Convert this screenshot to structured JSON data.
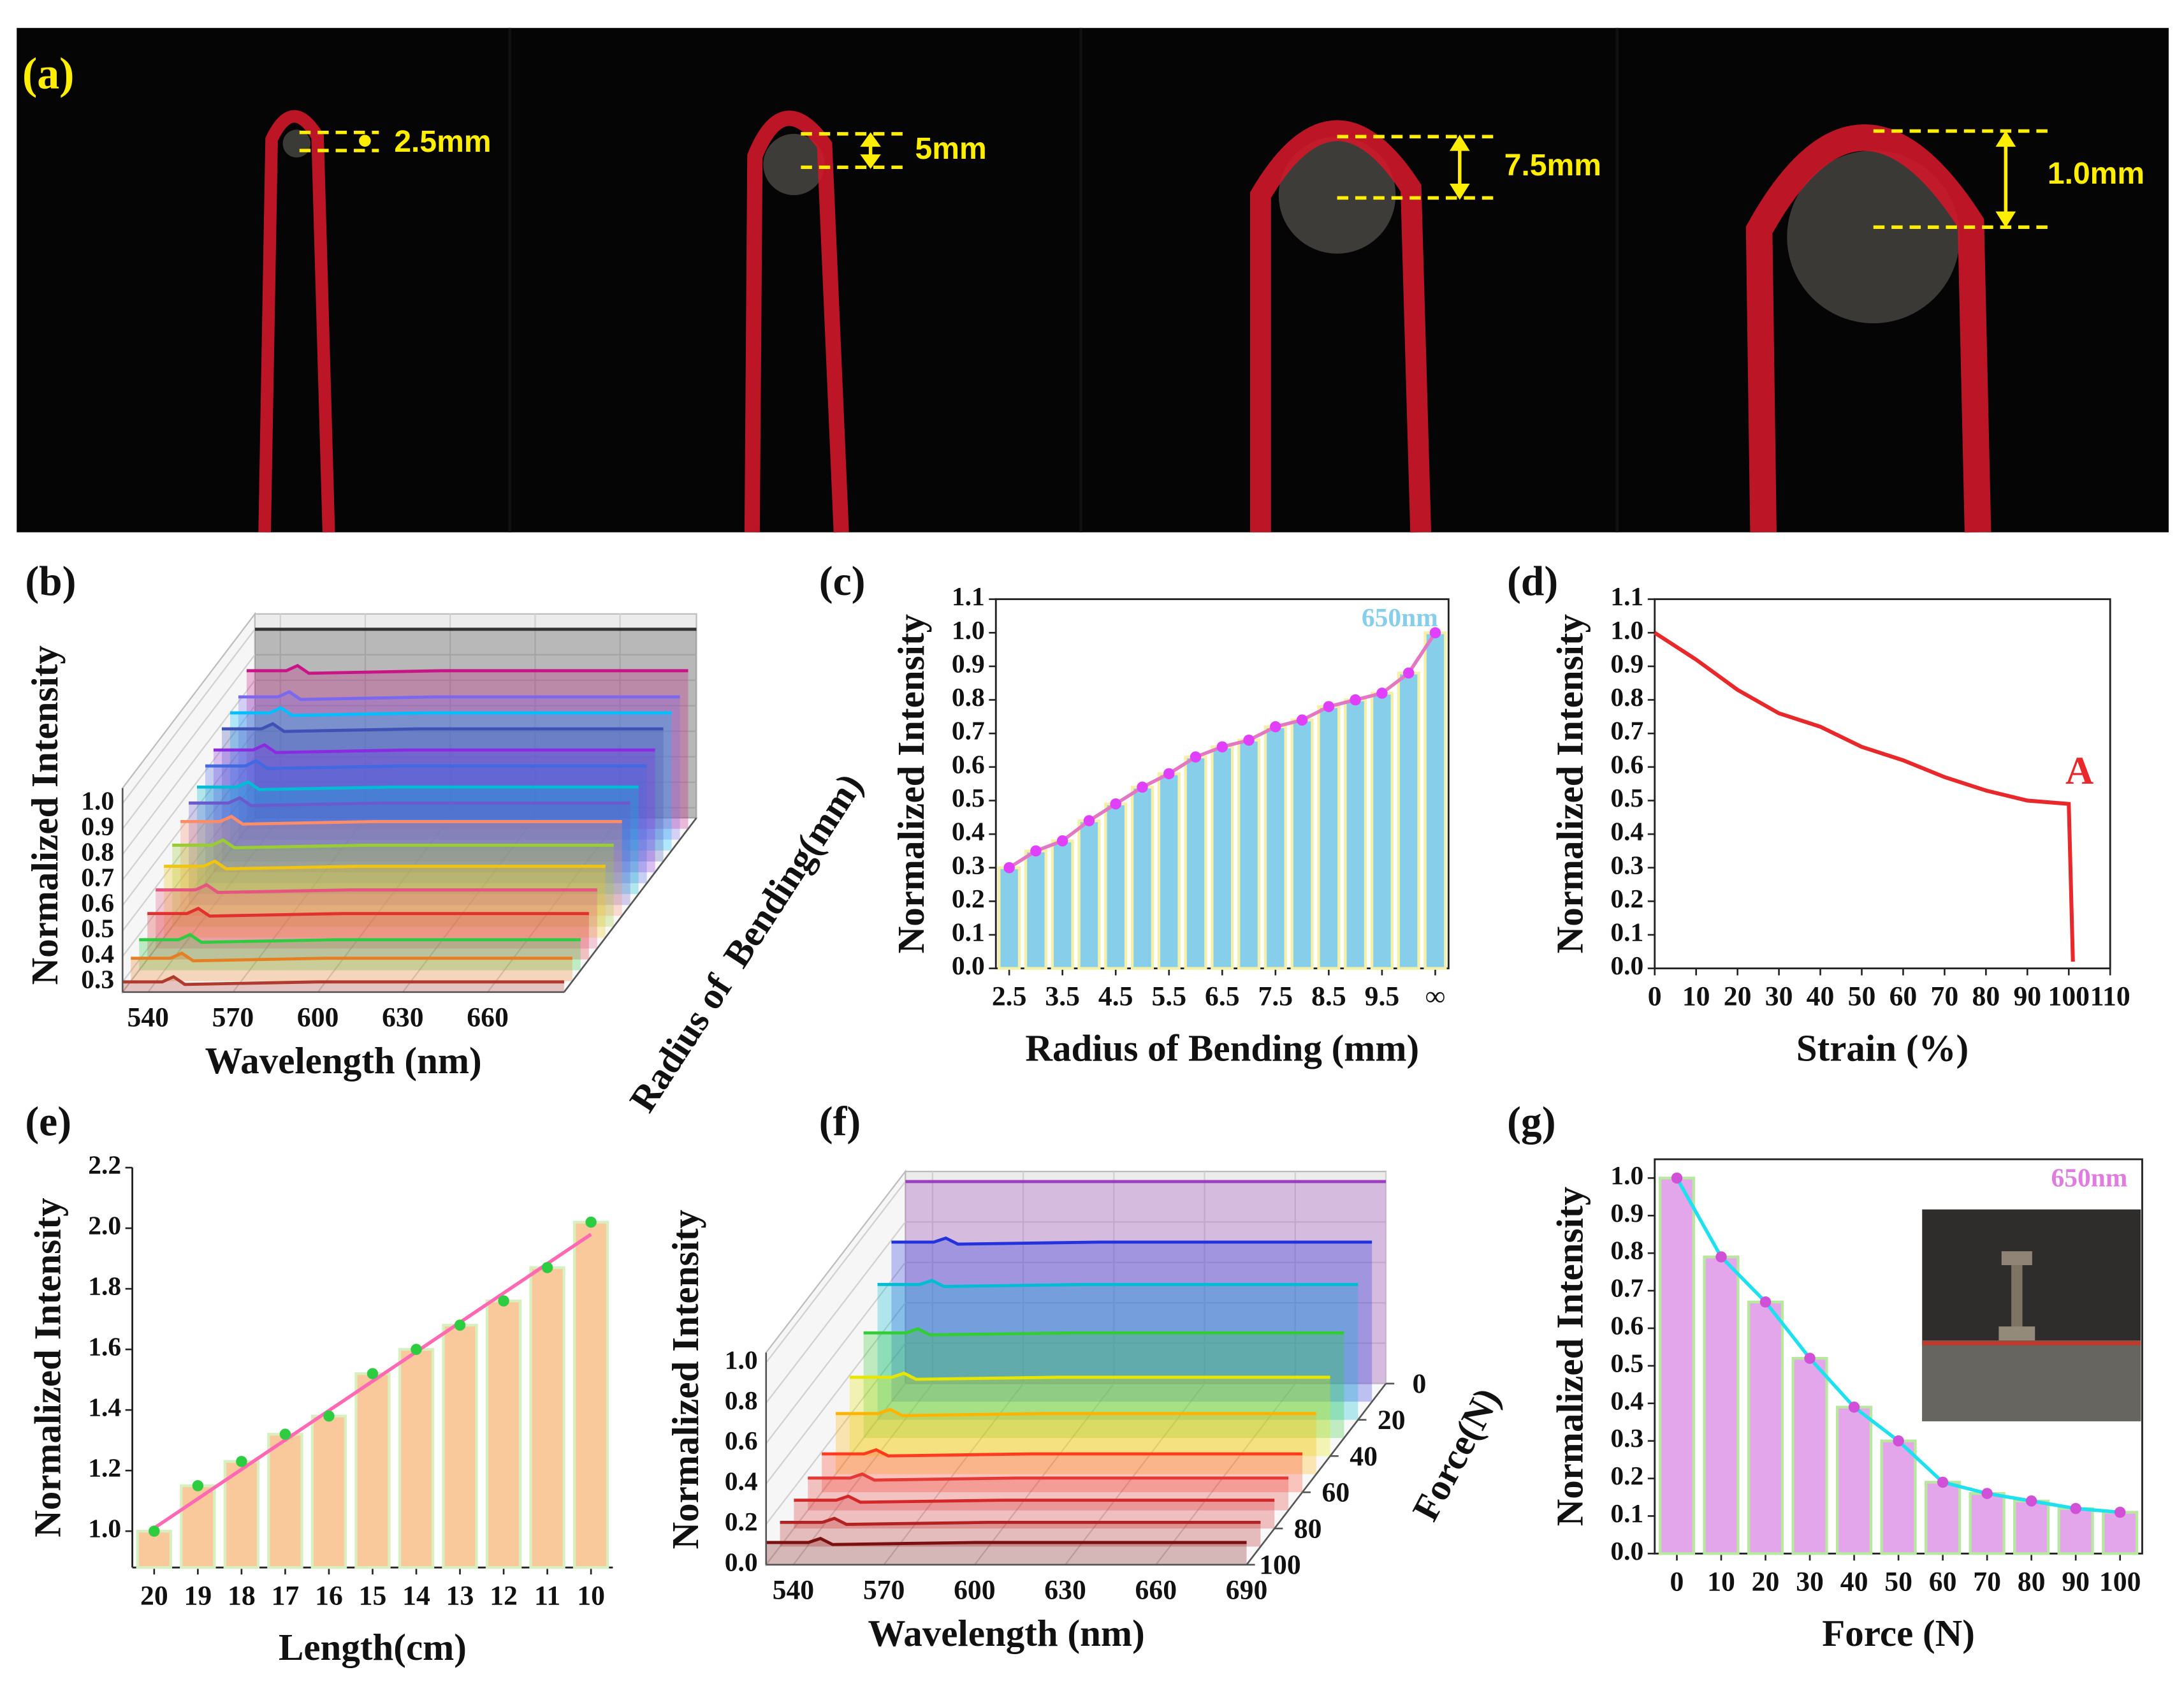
{
  "panel_a": {
    "label": "(a)",
    "annotations": [
      "2.5mm",
      "5mm",
      "7.5mm",
      "1.0mm"
    ]
  },
  "chart_data": [
    {
      "type": "waterfall3d",
      "label": "(b)",
      "xlabel": "Wavelength (nm)",
      "ylabel": "Normalized Intensity",
      "depth_label": "Radius of  Bending(mm)",
      "x": [
        531,
        545,
        549,
        553,
        600,
        687
      ],
      "xlim": [
        531,
        687
      ],
      "xticks": [
        540,
        570,
        600,
        630,
        660
      ],
      "ylim": [
        0.26,
        1.06
      ],
      "yticks": [
        0.3,
        0.4,
        0.5,
        0.6,
        0.7,
        0.8,
        0.9,
        {
          "value": 1,
          "label": "1.0"
        }
      ],
      "series": [
        {
          "color": "#b03a2e",
          "values": [
            0.3,
            0.3,
            0.32,
            0.29,
            0.3,
            0.3
          ]
        },
        {
          "color": "#e67e22",
          "values": [
            0.35,
            0.35,
            0.37,
            0.34,
            0.35,
            0.35
          ]
        },
        {
          "color": "#2ecc40",
          "values": [
            0.38,
            0.38,
            0.4,
            0.37,
            0.38,
            0.38
          ]
        },
        {
          "color": "#e03030",
          "values": [
            0.44,
            0.44,
            0.46,
            0.43,
            0.44,
            0.44
          ]
        },
        {
          "color": "#e75480",
          "values": [
            0.49,
            0.49,
            0.51,
            0.48,
            0.49,
            0.49
          ]
        },
        {
          "color": "#f1c40f",
          "values": [
            0.54,
            0.54,
            0.56,
            0.53,
            0.54,
            0.54
          ]
        },
        {
          "color": "#9acd32",
          "values": [
            0.58,
            0.58,
            0.6,
            0.57,
            0.58,
            0.58
          ]
        },
        {
          "color": "#ff8c69",
          "values": [
            0.63,
            0.63,
            0.65,
            0.62,
            0.63,
            0.63
          ]
        },
        {
          "color": "#6a5acd",
          "values": [
            0.66,
            0.66,
            0.68,
            0.65,
            0.66,
            0.66
          ]
        },
        {
          "color": "#00bcd4",
          "values": [
            0.68,
            0.68,
            0.7,
            0.67,
            0.68,
            0.68
          ]
        },
        {
          "color": "#4169e1",
          "values": [
            0.72,
            0.72,
            0.74,
            0.71,
            0.72,
            0.72
          ]
        },
        {
          "color": "#8a2be2",
          "values": [
            0.74,
            0.74,
            0.76,
            0.73,
            0.74,
            0.74
          ]
        },
        {
          "color": "#3f51b5",
          "values": [
            0.78,
            0.78,
            0.8,
            0.77,
            0.78,
            0.78
          ]
        },
        {
          "color": "#00bfff",
          "values": [
            0.8,
            0.8,
            0.82,
            0.79,
            0.8,
            0.8
          ]
        },
        {
          "color": "#7b68ee",
          "values": [
            0.82,
            0.82,
            0.84,
            0.81,
            0.82,
            0.82
          ]
        },
        {
          "color": "#c71585",
          "values": [
            0.88,
            0.88,
            0.9,
            0.87,
            0.88,
            0.88
          ]
        },
        {
          "color": "#333333",
          "values": [
            1.0,
            1.0,
            1.0,
            1.0,
            1.0,
            1.0
          ]
        }
      ]
    },
    {
      "type": "bar",
      "label": "(c)",
      "xlabel": "Radius of Bending (mm)",
      "ylabel": "Normalized Intensity",
      "categories": [
        "2.5",
        null,
        "3.5",
        null,
        "4.5",
        null,
        "5.5",
        null,
        "6.5",
        null,
        "7.5",
        null,
        "8.5",
        null,
        "9.5",
        null,
        "∞"
      ],
      "values": [
        0.3,
        0.35,
        0.38,
        0.44,
        0.49,
        0.54,
        0.58,
        0.63,
        0.66,
        0.68,
        0.72,
        0.74,
        0.78,
        0.8,
        0.82,
        0.88,
        1.0
      ],
      "color": "#87ceeb",
      "edge_color": "#f5f0a8",
      "line_color": "#e377c2",
      "marker_color": "#e040fb",
      "ylim": [
        0,
        1.1
      ],
      "yticks": [
        {
          "value": 0,
          "label": "0.0"
        },
        0.1,
        0.2,
        0.3,
        0.4,
        0.5,
        0.6,
        0.7,
        0.8,
        0.9,
        {
          "value": 1,
          "label": "1.0"
        },
        1.1
      ],
      "annotation": "650nm",
      "annotation_color": "#87ceeb"
    },
    {
      "type": "line",
      "label": "(d)",
      "xlabel": "Strain (%)",
      "ylabel": "Normalized Intensity",
      "x": [
        0,
        10,
        20,
        30,
        40,
        50,
        60,
        70,
        80,
        90,
        100,
        101
      ],
      "values": [
        1.0,
        0.92,
        0.83,
        0.76,
        0.72,
        0.66,
        0.62,
        0.57,
        0.53,
        0.5,
        0.49,
        0.02
      ],
      "color": "#e8282b",
      "xlim": [
        0,
        110
      ],
      "xticks": [
        0,
        10,
        20,
        30,
        40,
        50,
        60,
        70,
        80,
        90,
        100,
        110
      ],
      "ylim": [
        0,
        1.1
      ],
      "yticks": [
        {
          "value": 0,
          "label": "0.0"
        },
        0.1,
        0.2,
        0.3,
        0.4,
        0.5,
        0.6,
        0.7,
        0.8,
        0.9,
        {
          "value": 1,
          "label": "1.0"
        },
        1.1
      ],
      "annotation": "A",
      "annotation_color": "#e8282b"
    },
    {
      "type": "bar",
      "label": "(e)",
      "xlabel": "Length(cm)",
      "ylabel": "Normalized Intensity",
      "categories": [
        "20",
        "19",
        "18",
        "17",
        "16",
        "15",
        "14",
        "13",
        "12",
        "11",
        "10"
      ],
      "values": [
        1.0,
        1.15,
        1.23,
        1.32,
        1.38,
        1.52,
        1.6,
        1.68,
        1.76,
        1.87,
        2.02
      ],
      "color": "#f9c89b",
      "edge_color": "#d8f0c0",
      "marker_color": "#2ecc40",
      "fit": {
        "color": "#ff69b4",
        "values": [
          1.01,
          1.98
        ]
      },
      "ylim": [
        0.88,
        2.2
      ],
      "yticks": [
        {
          "value": 1,
          "label": "1.0"
        },
        1.2,
        1.4,
        1.6,
        1.8,
        {
          "value": 2,
          "label": "2.0"
        },
        2.2
      ]
    },
    {
      "type": "waterfall3d",
      "label": "(f)",
      "xlabel": "Wavelength (nm)",
      "ylabel": "Normalized Intensity",
      "depth_label": "Force(N)",
      "x": [
        531,
        545,
        549,
        553,
        600,
        690
      ],
      "xlim": [
        531,
        690
      ],
      "xticks": [
        540,
        570,
        600,
        630,
        660,
        690
      ],
      "ylim": [
        0,
        1.05
      ],
      "yticks": [
        {
          "value": 0,
          "label": "0.0"
        },
        0.2,
        0.4,
        0.6,
        0.8,
        {
          "value": 1,
          "label": "1.0"
        }
      ],
      "depthlim": [
        100,
        0
      ],
      "depth_ticks": [
        0,
        20,
        40,
        60,
        80,
        100
      ],
      "series": [
        {
          "color": "#7b1010",
          "values": [
            0.11,
            0.11,
            0.13,
            0.1,
            0.11,
            0.11
          ]
        },
        {
          "color": "#b22222",
          "values": [
            0.12,
            0.12,
            0.14,
            0.11,
            0.12,
            0.12
          ]
        },
        {
          "color": "#d62728",
          "values": [
            0.14,
            0.14,
            0.16,
            0.13,
            0.14,
            0.14
          ]
        },
        {
          "color": "#e53935",
          "values": [
            0.16,
            0.16,
            0.18,
            0.15,
            0.16,
            0.16
          ]
        },
        {
          "color": "#ff3b1f",
          "values": [
            0.19,
            0.19,
            0.21,
            0.18,
            0.19,
            0.19
          ]
        },
        {
          "color": "#ffb300",
          "values": [
            0.3,
            0.3,
            0.32,
            0.29,
            0.3,
            0.3
          ]
        },
        {
          "color": "#e6e600",
          "values": [
            0.39,
            0.39,
            0.41,
            0.38,
            0.39,
            0.39
          ]
        },
        {
          "color": "#32cd32",
          "values": [
            0.52,
            0.52,
            0.54,
            0.51,
            0.52,
            0.52
          ]
        },
        {
          "color": "#00bcd4",
          "values": [
            0.67,
            0.67,
            0.69,
            0.66,
            0.67,
            0.67
          ]
        },
        {
          "color": "#2233dd",
          "values": [
            0.79,
            0.79,
            0.81,
            0.78,
            0.79,
            0.79
          ]
        },
        {
          "color": "#9b3fc0",
          "values": [
            1.0,
            1.0,
            1.0,
            1.0,
            1.0,
            1.0
          ]
        }
      ]
    },
    {
      "type": "bar",
      "label": "(g)",
      "xlabel": "Force (N)",
      "ylabel": "Normalized Intensity",
      "categories": [
        "0",
        "10",
        "20",
        "30",
        "40",
        "50",
        "60",
        "70",
        "80",
        "90",
        "100"
      ],
      "values": [
        1.0,
        0.79,
        0.67,
        0.52,
        0.39,
        0.3,
        0.19,
        0.16,
        0.14,
        0.12,
        0.11
      ],
      "color": "#e3a6ea",
      "edge_color": "#b8e8a0",
      "line_color": "#1ee0ee",
      "marker_color": "#d050d8",
      "ylim": [
        0,
        1.05
      ],
      "yticks": [
        {
          "value": 0,
          "label": "0.0"
        },
        0.1,
        0.2,
        0.3,
        0.4,
        0.5,
        0.6,
        0.7,
        0.8,
        0.9,
        {
          "value": 1,
          "label": "1.0"
        }
      ],
      "annotation": "650nm",
      "annotation_color": "#e07be0"
    }
  ]
}
